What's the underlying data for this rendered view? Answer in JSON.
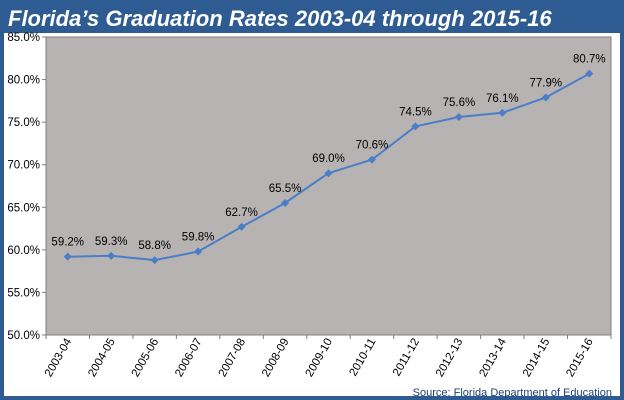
{
  "title": "Florida’s Graduation Rates 2003-04 through 2015-16",
  "source": "Source: Florida Department of Education",
  "colors": {
    "frame": "#2f5b93",
    "plot_area": "#b7b3b3",
    "line": "#4a7ec7"
  },
  "chart_data": {
    "type": "line",
    "categories": [
      "2003-04",
      "2004-05",
      "2005-06",
      "2006-07",
      "2007-08",
      "2008-09",
      "2009-10",
      "2010-11",
      "2011-12",
      "2012-13",
      "2013-14",
      "2014-15",
      "2015-16"
    ],
    "series": [
      {
        "values": [
          59.2,
          59.3,
          58.8,
          59.8,
          62.7,
          65.5,
          69.0,
          70.6,
          74.5,
          75.6,
          76.1,
          77.9,
          80.7
        ]
      }
    ],
    "data_labels": [
      "59.2%",
      "59.3%",
      "58.8%",
      "59.8%",
      "62.7%",
      "65.5%",
      "69.0%",
      "70.6%",
      "74.5%",
      "75.6%",
      "76.1%",
      "77.9%",
      "80.7%"
    ],
    "y_ticks": [
      "50.0%",
      "55.0%",
      "60.0%",
      "65.0%",
      "70.0%",
      "75.0%",
      "80.0%",
      "85.0%"
    ],
    "ylim": [
      50,
      85
    ],
    "grid": false,
    "legend": "none",
    "marker": "diamond"
  }
}
